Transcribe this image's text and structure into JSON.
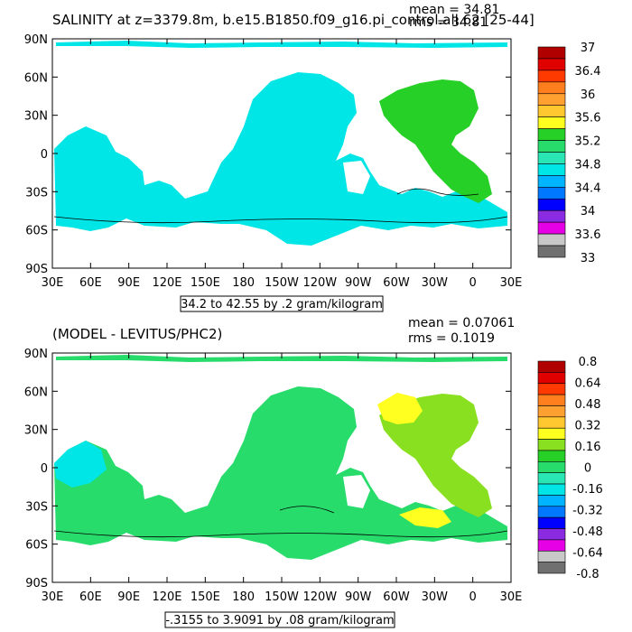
{
  "panels": [
    {
      "title": "SALINITY at z=3379.8m, b.e15.B1850.f09_g16.pi_control.all.62 [25-44]",
      "mean_text": "mean = 34.81",
      "rms_text": "rms = 34.81",
      "range_caption": "34.2 to 42.55 by .2 gram/kilogram",
      "colorbar_labels": [
        "37",
        "36.4",
        "36",
        "35.6",
        "35.2",
        "34.8",
        "34.4",
        "34",
        "33.6",
        "33"
      ]
    },
    {
      "title": "(MODEL - LEVITUS/PHC2)",
      "mean_text": "mean = 0.07061",
      "rms_text": "rms = 0.1019",
      "range_caption": "-.3155 to 3.9091 by .08 gram/kilogram",
      "colorbar_labels": [
        "0.8",
        "0.64",
        "0.48",
        "0.32",
        "0.16",
        "0",
        "-0.16",
        "-0.32",
        "-0.48",
        "-0.64",
        "-0.8"
      ]
    }
  ],
  "chart_data": [
    {
      "type": "heatmap",
      "title": "SALINITY at z=3379.8m, b.e15.B1850.f09_g16.pi_control.all.62 [25-44]",
      "x_tick_labels": [
        "30E",
        "60E",
        "90E",
        "120E",
        "150E",
        "180",
        "150W",
        "120W",
        "90W",
        "60W",
        "30W",
        "0",
        "30E"
      ],
      "y_tick_labels": [
        "90N",
        "60N",
        "30N",
        "0",
        "30S",
        "60S",
        "90S"
      ],
      "xlim": [
        30,
        390
      ],
      "ylim": [
        -90,
        90
      ],
      "units": "gram/kilogram",
      "mean": 34.81,
      "colorbar_levels": [
        37,
        36.4,
        36,
        35.6,
        35.2,
        34.8,
        34.4,
        34,
        33.6,
        33
      ],
      "colorbar_colors": [
        "#b00000",
        "#e00000",
        "#ff3a00",
        "#ff7f1e",
        "#ffa030",
        "#ffc830",
        "#ffff20",
        "#26d026",
        "#28dc6c",
        "#2ae6b4",
        "#00e6e6",
        "#00b4ff",
        "#0078ff",
        "#0000ff",
        "#8a2be2",
        "#e600e6",
        "#c8c8c8",
        "#707070"
      ],
      "dominant_field_color": "#00e6e6",
      "atlantic_color": "#26d026"
    },
    {
      "type": "heatmap",
      "title": "(MODEL - LEVITUS/PHC2)",
      "x_tick_labels": [
        "30E",
        "60E",
        "90E",
        "120E",
        "150E",
        "180",
        "150W",
        "120W",
        "90W",
        "60W",
        "30W",
        "0",
        "30E"
      ],
      "y_tick_labels": [
        "90N",
        "60N",
        "30N",
        "0",
        "30S",
        "60S",
        "90S"
      ],
      "xlim": [
        30,
        390
      ],
      "ylim": [
        -90,
        90
      ],
      "units": "gram/kilogram",
      "mean": 0.07061,
      "rms": 0.1019,
      "colorbar_levels": [
        0.8,
        0.64,
        0.48,
        0.32,
        0.16,
        0,
        -0.16,
        -0.32,
        -0.48,
        -0.64,
        -0.8
      ],
      "colorbar_colors": [
        "#b00000",
        "#e00000",
        "#ff3a00",
        "#ff7f1e",
        "#ffa030",
        "#ffc830",
        "#ffff20",
        "#88e020",
        "#26d026",
        "#28dc6c",
        "#2ae6b4",
        "#00e6e6",
        "#00b4ff",
        "#0078ff",
        "#0000ff",
        "#8a2be2",
        "#e600e6",
        "#c8c8c8",
        "#707070"
      ],
      "dominant_field_color": "#88e020",
      "atlantic_color": "#88e020",
      "positive_anomaly_color": "#ffff20"
    }
  ]
}
